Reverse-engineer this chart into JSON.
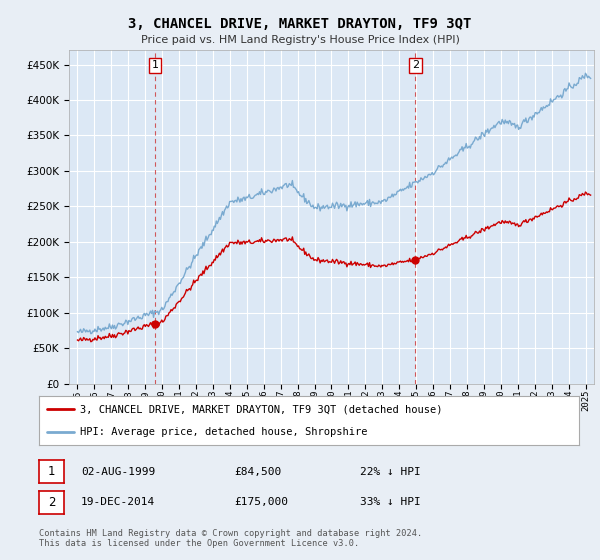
{
  "title": "3, CHANCEL DRIVE, MARKET DRAYTON, TF9 3QT",
  "subtitle": "Price paid vs. HM Land Registry's House Price Index (HPI)",
  "background_color": "#e8eef5",
  "plot_bg_color": "#dce8f5",
  "grid_color": "#ffffff",
  "red_line_color": "#cc0000",
  "blue_line_color": "#7aaad0",
  "sale1_date_num": 1999.58,
  "sale1_price": 84500,
  "sale1_label": "1",
  "sale2_date_num": 2014.96,
  "sale2_price": 175000,
  "sale2_label": "2",
  "legend_red_label": "3, CHANCEL DRIVE, MARKET DRAYTON, TF9 3QT (detached house)",
  "legend_blue_label": "HPI: Average price, detached house, Shropshire",
  "annotation1_date": "02-AUG-1999",
  "annotation1_price": "£84,500",
  "annotation1_hpi": "22% ↓ HPI",
  "annotation2_date": "19-DEC-2014",
  "annotation2_price": "£175,000",
  "annotation2_hpi": "33% ↓ HPI",
  "footer": "Contains HM Land Registry data © Crown copyright and database right 2024.\nThis data is licensed under the Open Government Licence v3.0.",
  "ylim_min": 0,
  "ylim_max": 470000,
  "xlim_min": 1994.5,
  "xlim_max": 2025.5
}
